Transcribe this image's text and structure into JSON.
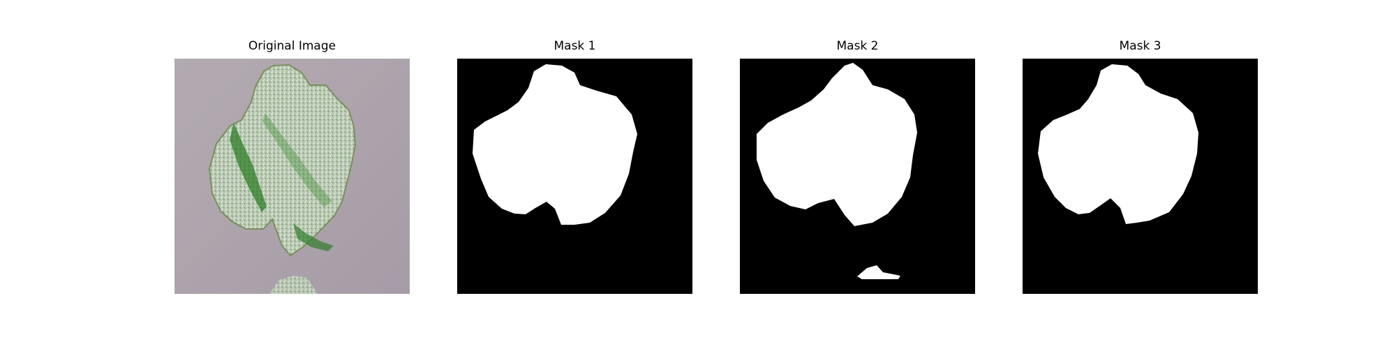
{
  "panels": [
    {
      "title": "Original Image",
      "kind": "photo"
    },
    {
      "title": "Mask 1",
      "kind": "mask"
    },
    {
      "title": "Mask 2",
      "kind": "mask"
    },
    {
      "title": "Mask 3",
      "kind": "mask"
    }
  ],
  "colors": {
    "background": "#ffffff",
    "mask_background": "#000000",
    "mask_foreground": "#ffffff",
    "leaf_light": "#c7d6bf",
    "leaf_dark": "#2f7d2a",
    "photo_background": "#a79ea7"
  }
}
